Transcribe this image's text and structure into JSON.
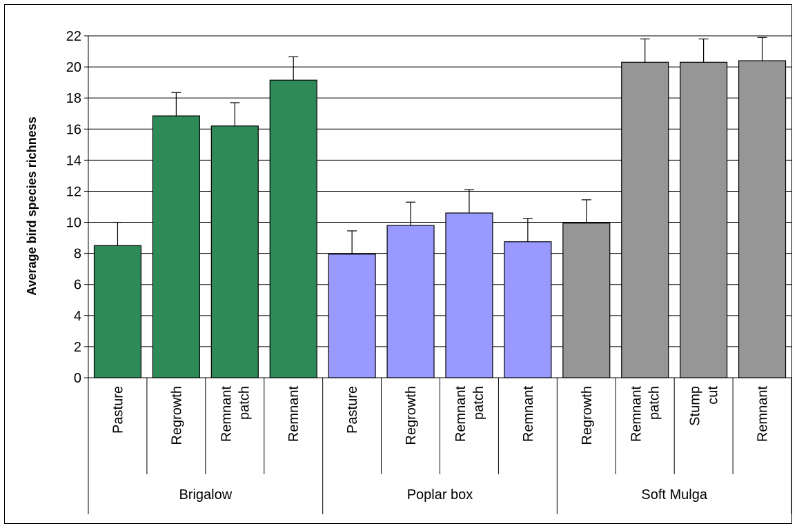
{
  "chart_data": {
    "type": "bar",
    "title": "",
    "xlabel": "",
    "ylabel": "Average bird species richness",
    "ylim": [
      0,
      22
    ],
    "yticks": [
      0,
      2,
      4,
      6,
      8,
      10,
      12,
      14,
      16,
      18,
      20,
      22
    ],
    "grid": "horizontal",
    "legend": "none",
    "groups": [
      {
        "name": "Brigalow",
        "color": "#2e8b57",
        "categories": [
          {
            "label": [
              "Pasture"
            ],
            "value": 8.5,
            "error": 1.5
          },
          {
            "label": [
              "Regrowth"
            ],
            "value": 16.85,
            "error": 1.5
          },
          {
            "label": [
              "Remnant",
              "patch"
            ],
            "value": 16.2,
            "error": 1.5
          },
          {
            "label": [
              "Remnant"
            ],
            "value": 19.15,
            "error": 1.5
          }
        ]
      },
      {
        "name": "Poplar box",
        "color": "#9999ff",
        "categories": [
          {
            "label": [
              "Pasture"
            ],
            "value": 7.95,
            "error": 1.5
          },
          {
            "label": [
              "Regrowth"
            ],
            "value": 9.8,
            "error": 1.5
          },
          {
            "label": [
              "Remnant",
              "patch"
            ],
            "value": 10.6,
            "error": 1.5
          },
          {
            "label": [
              "Remnant"
            ],
            "value": 8.75,
            "error": 1.5
          }
        ]
      },
      {
        "name": "Soft Mulga",
        "color": "#969696",
        "categories": [
          {
            "label": [
              "Regrowth"
            ],
            "value": 9.95,
            "error": 1.5
          },
          {
            "label": [
              "Remnant",
              "patch"
            ],
            "value": 20.3,
            "error": 1.5
          },
          {
            "label": [
              "Stump",
              "cut"
            ],
            "value": 20.3,
            "error": 1.5
          },
          {
            "label": [
              "Remnant"
            ],
            "value": 20.4,
            "error": 1.5
          }
        ]
      }
    ]
  }
}
